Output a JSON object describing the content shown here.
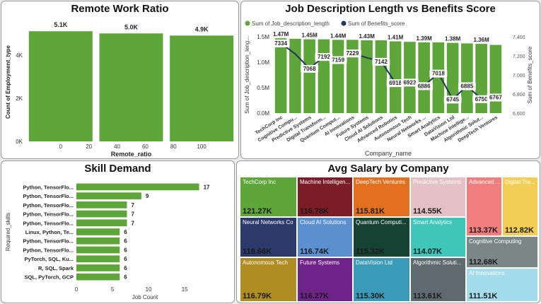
{
  "panels": {
    "remote": {
      "title": "Remote Work Ratio"
    },
    "jobdesc": {
      "title": "Job Description Length vs Benefits Score"
    },
    "skill": {
      "title": "Skill Demand"
    },
    "salary": {
      "title": "Avg Salary by Company"
    }
  },
  "colors": {
    "bar_green": "#5ea53a",
    "line_navy": "#24365d"
  },
  "chart_data": [
    {
      "id": "remote",
      "type": "bar",
      "title": "Remote Work Ratio",
      "xlabel": "Remote_ratio",
      "ylabel": "Count of Employment_type",
      "x": [
        0,
        50,
        100
      ],
      "values": [
        5100,
        5000,
        4900
      ],
      "data_labels": [
        "5.1K",
        "5.0K",
        "4.9K"
      ],
      "x_ticks": [
        "0",
        "20",
        "40",
        "60",
        "80",
        "100"
      ],
      "x_tick_values": [
        0,
        20,
        40,
        60,
        80,
        100
      ],
      "y_ticks": [
        "0K",
        "2K",
        "4K"
      ],
      "y_tick_values": [
        0,
        2000,
        4000
      ],
      "xlim": [
        -25,
        125
      ],
      "ylim": [
        0,
        5500
      ]
    },
    {
      "id": "jobdesc",
      "type": "bar",
      "title": "Job Description Length vs Benefits Score",
      "xlabel": "Company_name",
      "ylabel": "Sum of Job_description_leng...",
      "ylabel_right": "Sum of Benefits_score",
      "legend": [
        "Sum of Job_description_length",
        "Sum of Benefits_score"
      ],
      "legend_position": "top-left",
      "categories": [
        "TechCorp Inc",
        "Cognitive Compu...",
        "Predictive Systems",
        "Digital Transform...",
        "Quantum Comput...",
        "AI Innovations",
        "Future Systems",
        "Cloud AI Solutions",
        "Advanced Robotics",
        "Autonomous Tech",
        "Neural Networks ...",
        "Smart Analytics",
        "DataVision Ltd",
        "Machine Intellige...",
        "Algorithmic Solut...",
        "DeepTech Ventures"
      ],
      "series": [
        {
          "name": "Sum of Job_description_length",
          "type": "bar",
          "values": [
            1470000,
            1460000,
            1450000,
            1450000,
            1440000,
            1440000,
            1430000,
            1430000,
            1410000,
            1400000,
            1390000,
            1390000,
            1380000,
            1370000,
            1360000,
            1340000
          ],
          "labels": [
            "1.47M",
            "",
            "1.45M",
            "",
            "1.44M",
            "",
            "1.43M",
            "",
            "1.41M",
            "",
            "1.39M",
            "",
            "1.38M",
            "",
            "1.36M",
            ""
          ]
        },
        {
          "name": "Sum of Benefits_score",
          "type": "line",
          "axis": "right",
          "values": [
            7334,
            7220,
            7068,
            7192,
            7159,
            7229,
            7180,
            7142,
            6918,
            6923,
            6886,
            7018,
            6745,
            6885,
            6750,
            6767
          ],
          "labels": [
            "7334",
            "",
            "7068",
            "7192",
            "7159",
            "7229",
            "",
            "7142",
            "6918",
            "6923",
            "6886",
            "7018",
            "6745",
            "6885",
            "6750",
            "6767"
          ]
        }
      ],
      "y_ticks": [
        "0.0M",
        "0.5M",
        "1.0M",
        "1.5M"
      ],
      "y_tick_values": [
        0,
        500000,
        1000000,
        1500000
      ],
      "ylim": [
        0,
        1500000
      ],
      "y2_ticks": [
        "6,600",
        "6,800",
        "7,000",
        "7,200",
        "7,400"
      ],
      "y2_tick_values": [
        6600,
        6800,
        7000,
        7200,
        7400
      ],
      "y2lim": [
        6600,
        7400
      ]
    },
    {
      "id": "skill",
      "type": "bar",
      "orientation": "horizontal",
      "title": "Skill Demand",
      "xlabel": "Job Count",
      "ylabel": "Required_skills",
      "categories": [
        "Python, TensorFlo...",
        "Python, TensorFlo...",
        "Python, TensorFlo...",
        "Python, TensorFlo...",
        "Python, TensorFlo...",
        "Linux, Python, Te...",
        "Python, TensorFlo...",
        "Python, TensorFlo...",
        "PyTorch, SQL, Ku...",
        "R, SQL, Spark",
        "SQL, PyTorch, GCP"
      ],
      "values": [
        17,
        9,
        7,
        7,
        7,
        6,
        6,
        6,
        6,
        6,
        6
      ],
      "x_ticks": [
        "0",
        "5",
        "10",
        "15"
      ],
      "x_tick_values": [
        0,
        5,
        10,
        15
      ],
      "xlim": [
        0,
        19
      ]
    },
    {
      "id": "salary",
      "type": "treemap",
      "title": "Avg Salary by Company",
      "items": [
        {
          "name": "TechCorp Inc",
          "label": "121.27K",
          "value": 121270,
          "color": "#5ea53a"
        },
        {
          "name": "Neural Networks Co",
          "label": "118.66K",
          "value": 118660,
          "color": "#2b3a6b"
        },
        {
          "name": "Autonomous Tech",
          "label": "116.79K",
          "value": 116790,
          "color": "#b08d22"
        },
        {
          "name": "Machine Intelligen...",
          "label": "116.78K",
          "value": 116780,
          "color": "#7b1c26"
        },
        {
          "name": "Cloud AI Solutions",
          "label": "116.74K",
          "value": 116740,
          "color": "#5b8fd0"
        },
        {
          "name": "Future Systems",
          "label": "116.27K",
          "value": 116270,
          "color": "#6d2387"
        },
        {
          "name": "DeepTech Ventures",
          "label": "115.81K",
          "value": 115810,
          "color": "#e2701f"
        },
        {
          "name": "Quantum Computi...",
          "label": "115.32K",
          "value": 115320,
          "color": "#154232"
        },
        {
          "name": "DataVision Ltd",
          "label": "115.30K",
          "value": 115300,
          "color": "#3b9ab7"
        },
        {
          "name": "Predictive Systems",
          "label": "114.55K",
          "value": 114550,
          "color": "#e4c1c6"
        },
        {
          "name": "Smart Analytics",
          "label": "114.07K",
          "value": 114070,
          "color": "#40c6b9"
        },
        {
          "name": "Algorithmic Soluti...",
          "label": "113.61K",
          "value": 113610,
          "color": "#5f6a70"
        },
        {
          "name": "Advanced ...",
          "label": "113.37K",
          "value": 113370,
          "color": "#f17e7e"
        },
        {
          "name": "Digital Tra...",
          "label": "112.82K",
          "value": 112820,
          "color": "#f2ce55"
        },
        {
          "name": "Cognitive Computing",
          "label": "112.68K",
          "value": 112680,
          "color": "#7b8686"
        },
        {
          "name": "AI Innovations",
          "label": "111.51K",
          "value": 111510,
          "color": "#a5dceb"
        }
      ]
    }
  ]
}
